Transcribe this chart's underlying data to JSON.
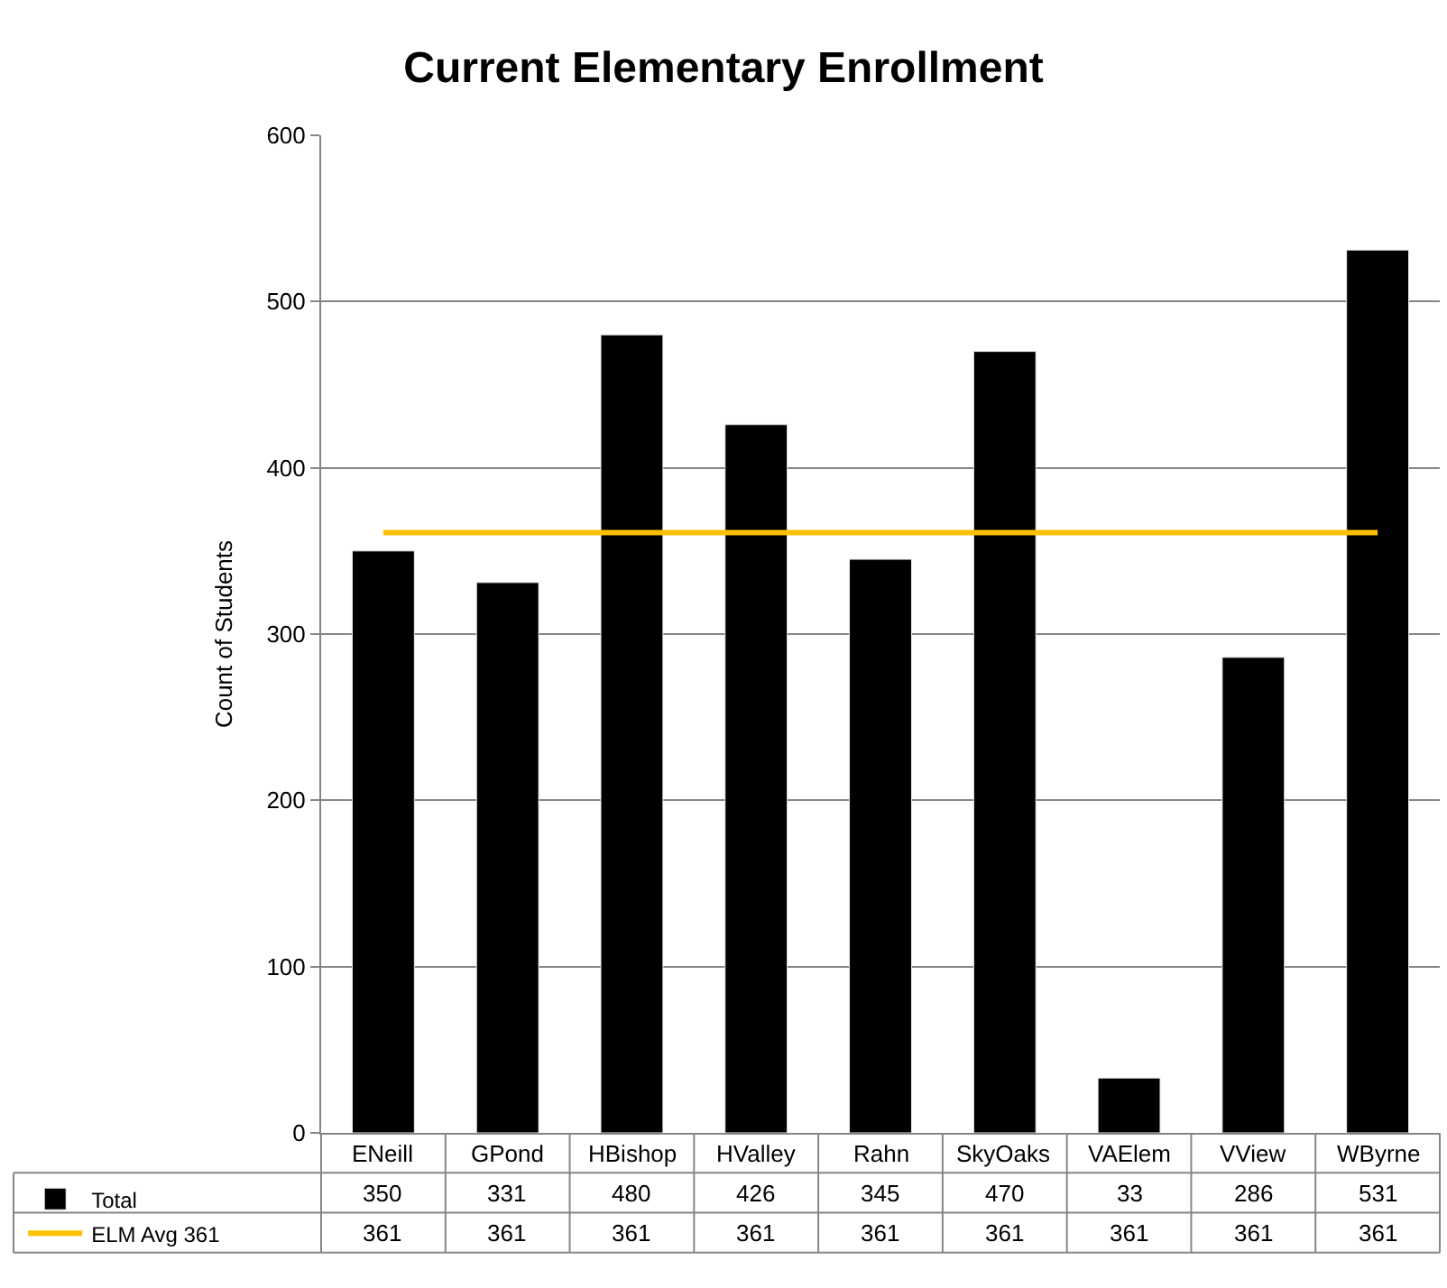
{
  "chart_data": {
    "type": "bar",
    "title": "Current Elementary Enrollment",
    "ylabel": "Count of Students",
    "categories": [
      "ENeill",
      "GPond",
      "HBishop",
      "HValley",
      "Rahn",
      "SkyOaks",
      "VAElem",
      "VView",
      "WByrne"
    ],
    "series": [
      {
        "name": "Total",
        "color": "#000000",
        "values": [
          350,
          331,
          480,
          426,
          345,
          470,
          33,
          286,
          531
        ]
      },
      {
        "name": "ELM Avg 361",
        "type": "line",
        "color": "#ffc000",
        "values": [
          361,
          361,
          361,
          361,
          361,
          361,
          361,
          361,
          361
        ]
      }
    ],
    "ylim": [
      0,
      600
    ],
    "yticks": [
      0,
      100,
      200,
      300,
      400,
      500,
      600
    ],
    "grid": "y",
    "legend": "bottom left",
    "data_labels": true
  }
}
